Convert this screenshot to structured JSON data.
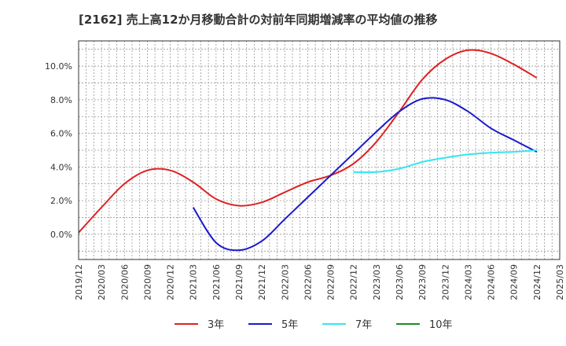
{
  "title": "[2162]  売上高12か月移動合計の対前年同期増減率の平均値の推移",
  "chart_data": {
    "type": "line",
    "title": "[2162]  売上高12か月移動合計の対前年同期増減率の平均値の推移",
    "xlabel": "",
    "ylabel": "",
    "x_ticks": [
      "2019/12",
      "2020/03",
      "2020/06",
      "2020/09",
      "2020/12",
      "2021/03",
      "2021/06",
      "2021/09",
      "2021/12",
      "2022/03",
      "2022/06",
      "2022/09",
      "2022/12",
      "2023/03",
      "2023/06",
      "2023/09",
      "2023/12",
      "2024/03",
      "2024/06",
      "2024/09",
      "2024/12",
      "2025/03"
    ],
    "y_ticks": [
      "0.0%",
      "2.0%",
      "4.0%",
      "6.0%",
      "8.0%",
      "10.0%"
    ],
    "ylim": [
      -1.5,
      11.5
    ],
    "grid": true,
    "legend_position": "bottom",
    "series": [
      {
        "name": "3年",
        "color": "#dd2222",
        "points": [
          [
            "2019/12",
            0.1
          ],
          [
            "2020/03",
            1.6
          ],
          [
            "2020/06",
            3.0
          ],
          [
            "2020/09",
            3.8
          ],
          [
            "2020/12",
            3.8
          ],
          [
            "2021/03",
            3.1
          ],
          [
            "2021/06",
            2.1
          ],
          [
            "2021/09",
            1.7
          ],
          [
            "2021/12",
            1.9
          ],
          [
            "2022/03",
            2.5
          ],
          [
            "2022/06",
            3.1
          ],
          [
            "2022/09",
            3.5
          ],
          [
            "2022/12",
            4.2
          ],
          [
            "2023/03",
            5.5
          ],
          [
            "2023/06",
            7.3
          ],
          [
            "2023/09",
            9.2
          ],
          [
            "2023/12",
            10.4
          ],
          [
            "2024/03",
            10.95
          ],
          [
            "2024/06",
            10.75
          ],
          [
            "2024/09",
            10.1
          ],
          [
            "2024/12",
            9.3
          ]
        ]
      },
      {
        "name": "5年",
        "color": "#1a1acc",
        "points": [
          [
            "2021/03",
            1.6
          ],
          [
            "2021/06",
            -0.5
          ],
          [
            "2021/09",
            -0.95
          ],
          [
            "2021/12",
            -0.4
          ],
          [
            "2022/03",
            0.9
          ],
          [
            "2022/06",
            2.2
          ],
          [
            "2022/09",
            3.5
          ],
          [
            "2022/12",
            4.8
          ],
          [
            "2023/03",
            6.1
          ],
          [
            "2023/06",
            7.3
          ],
          [
            "2023/09",
            8.05
          ],
          [
            "2023/12",
            8.0
          ],
          [
            "2024/03",
            7.3
          ],
          [
            "2024/06",
            6.3
          ],
          [
            "2024/09",
            5.6
          ],
          [
            "2024/12",
            4.9
          ]
        ]
      },
      {
        "name": "7年",
        "color": "#33e6f0",
        "points": [
          [
            "2022/12",
            3.7
          ],
          [
            "2023/03",
            3.7
          ],
          [
            "2023/06",
            3.9
          ],
          [
            "2023/09",
            4.3
          ],
          [
            "2023/12",
            4.55
          ],
          [
            "2024/03",
            4.75
          ],
          [
            "2024/06",
            4.85
          ],
          [
            "2024/09",
            4.9
          ],
          [
            "2024/12",
            5.0
          ]
        ]
      },
      {
        "name": "10年",
        "color": "#228822",
        "points": []
      }
    ]
  }
}
